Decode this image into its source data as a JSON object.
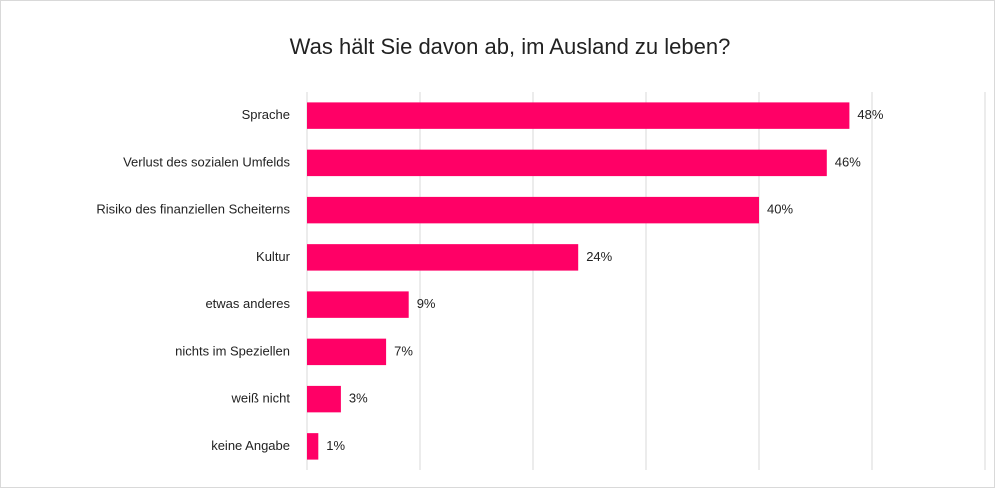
{
  "chart_data": {
    "type": "bar",
    "orientation": "horizontal",
    "title": "Was hält Sie davon ab, im Ausland zu leben?",
    "categories": [
      "Sprache",
      "Verlust des sozialen Umfelds",
      "Risiko des finanziellen Scheiterns",
      "Kultur",
      "etwas anderes",
      "nichts im Speziellen",
      "weiß nicht",
      "keine Angabe"
    ],
    "values": [
      48,
      46,
      40,
      24,
      9,
      7,
      3,
      1
    ],
    "value_labels": [
      "48%",
      "46%",
      "40%",
      "24%",
      "9%",
      "7%",
      "3%",
      "1%"
    ],
    "color": "#ff0066",
    "xlim": [
      0,
      60
    ],
    "xticks": [
      0,
      10,
      20,
      30,
      40,
      50,
      60
    ],
    "grid": true
  }
}
